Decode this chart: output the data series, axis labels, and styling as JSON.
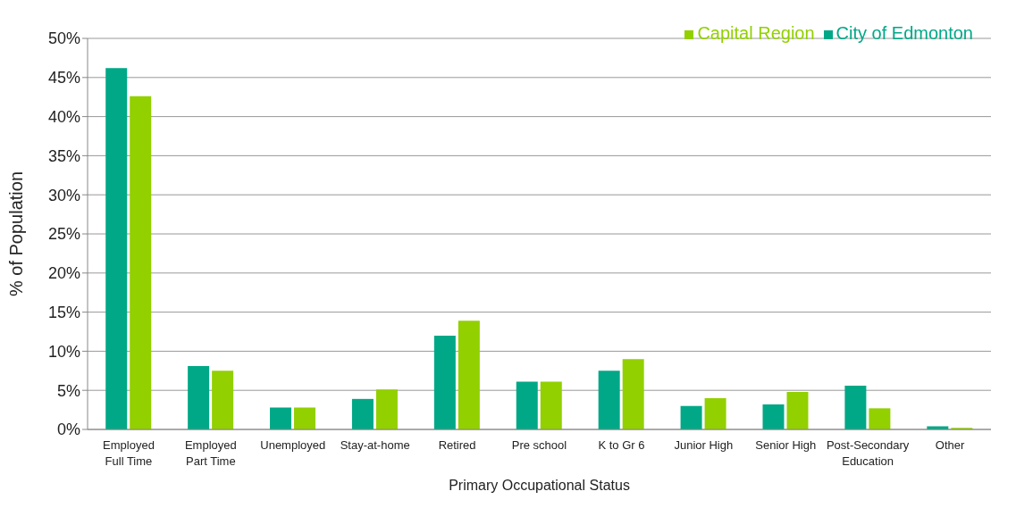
{
  "chart_data": {
    "type": "bar",
    "xlabel": "Primary Occupational Status",
    "ylabel": "% of Population",
    "categories": [
      "Employed Full Time",
      "Employed Part Time",
      "Unemployed",
      "Stay-at-home",
      "Retired",
      "Pre school",
      "K to Gr 6",
      "Junior High",
      "Senior High",
      "Post-Secondary Education",
      "Other"
    ],
    "series": [
      {
        "name": "City of Edmonton",
        "color": "#00a887",
        "values": [
          46.2,
          8.1,
          2.8,
          3.9,
          12.0,
          6.1,
          7.5,
          3.0,
          3.2,
          5.6,
          0.4
        ]
      },
      {
        "name": "Capital Region",
        "color": "#92d000",
        "values": [
          42.6,
          7.5,
          2.8,
          5.1,
          13.9,
          6.1,
          9.0,
          4.0,
          4.8,
          2.7,
          0.2
        ]
      }
    ],
    "ylim": [
      0,
      50
    ],
    "yticks": [
      {
        "value": 0,
        "label": "0%"
      },
      {
        "value": 5,
        "label": "5%"
      },
      {
        "value": 10,
        "label": "10%"
      },
      {
        "value": 15,
        "label": "15%"
      },
      {
        "value": 20,
        "label": "20%"
      },
      {
        "value": 25,
        "label": "25%"
      },
      {
        "value": 30,
        "label": "30%"
      },
      {
        "value": 35,
        "label": "35%"
      },
      {
        "value": 40,
        "label": "40%"
      },
      {
        "value": 45,
        "label": "45%"
      },
      {
        "value": 50,
        "label": "50%"
      }
    ],
    "grid": "y",
    "legend": "top right"
  }
}
